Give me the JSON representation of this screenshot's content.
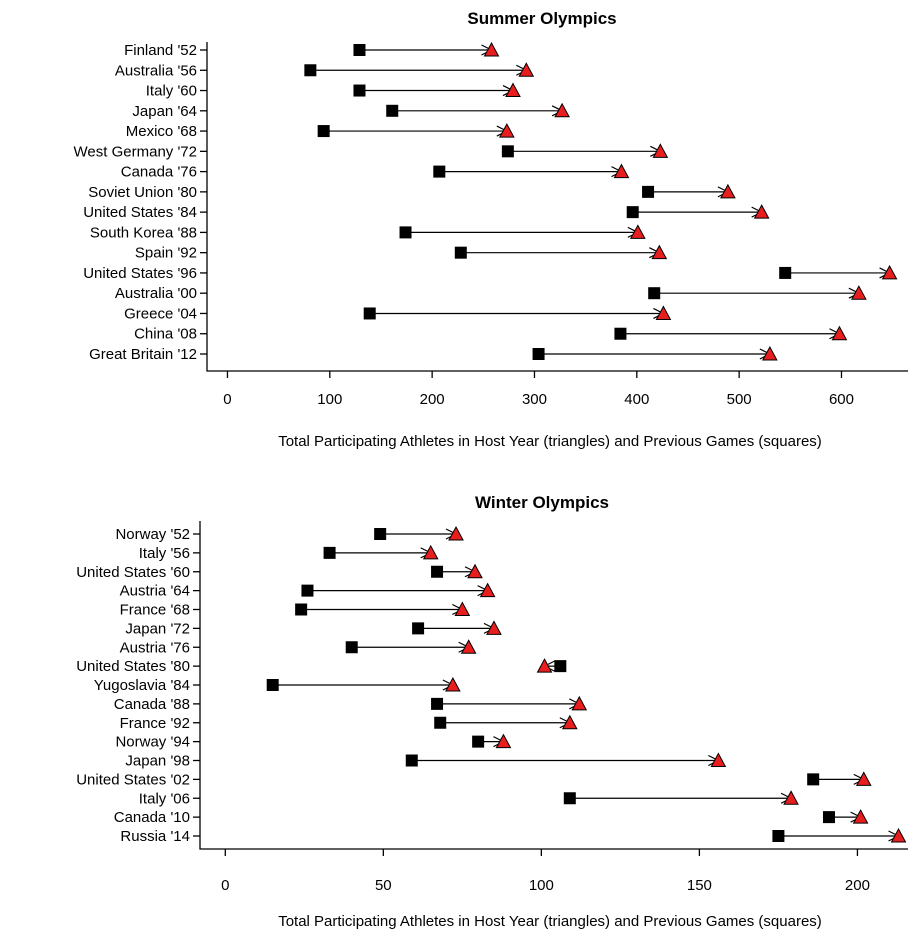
{
  "chart_data": [
    {
      "type": "dumbbell",
      "title": "Summer Olympics",
      "xlabel": "Total Participating Athletes in Host Year (triangles) and Previous Games (squares)",
      "xlim": [
        -20,
        665
      ],
      "xticks": [
        0,
        100,
        200,
        300,
        400,
        500,
        600
      ],
      "marker_colors": {
        "previous_games": "#000000",
        "host_year": "#e81e1e"
      },
      "categories": [
        "Finland '52",
        "Australia '56",
        "Italy '60",
        "Japan '64",
        "Mexico '68",
        "West Germany '72",
        "Canada '76",
        "Soviet Union '80",
        "United States '84",
        "South Korea '88",
        "Spain '92",
        "United States '96",
        "Australia '00",
        "Greece '04",
        "China '08",
        "Great Britain '12"
      ],
      "previous_games": [
        129,
        81,
        129,
        161,
        94,
        274,
        207,
        411,
        396,
        174,
        228,
        545,
        417,
        139,
        384,
        304
      ],
      "host_year": [
        258,
        292,
        279,
        327,
        273,
        423,
        385,
        489,
        522,
        401,
        422,
        647,
        617,
        426,
        598,
        530
      ]
    },
    {
      "type": "dumbbell",
      "title": "Winter Olympics",
      "xlabel": "Total Participating Athletes in Host Year (triangles) and Previous Games (squares)",
      "xlim": [
        -8,
        216
      ],
      "xticks": [
        0,
        50,
        100,
        150,
        200
      ],
      "marker_colors": {
        "previous_games": "#000000",
        "host_year": "#e81e1e"
      },
      "categories": [
        "Norway '52",
        "Italy '56",
        "United States '60",
        "Austria '64",
        "France '68",
        "Japan '72",
        "Austria '76",
        "United States '80",
        "Yugoslavia '84",
        "Canada '88",
        "France '92",
        "Norway '94",
        "Japan '98",
        "United States '02",
        "Italy '06",
        "Canada '10",
        "Russia '14"
      ],
      "previous_games": [
        49,
        33,
        67,
        26,
        24,
        61,
        40,
        106,
        15,
        67,
        68,
        80,
        59,
        186,
        109,
        191,
        175
      ],
      "host_year": [
        73,
        65,
        79,
        83,
        75,
        85,
        77,
        101,
        72,
        112,
        109,
        88,
        156,
        202,
        179,
        201,
        213
      ]
    }
  ]
}
